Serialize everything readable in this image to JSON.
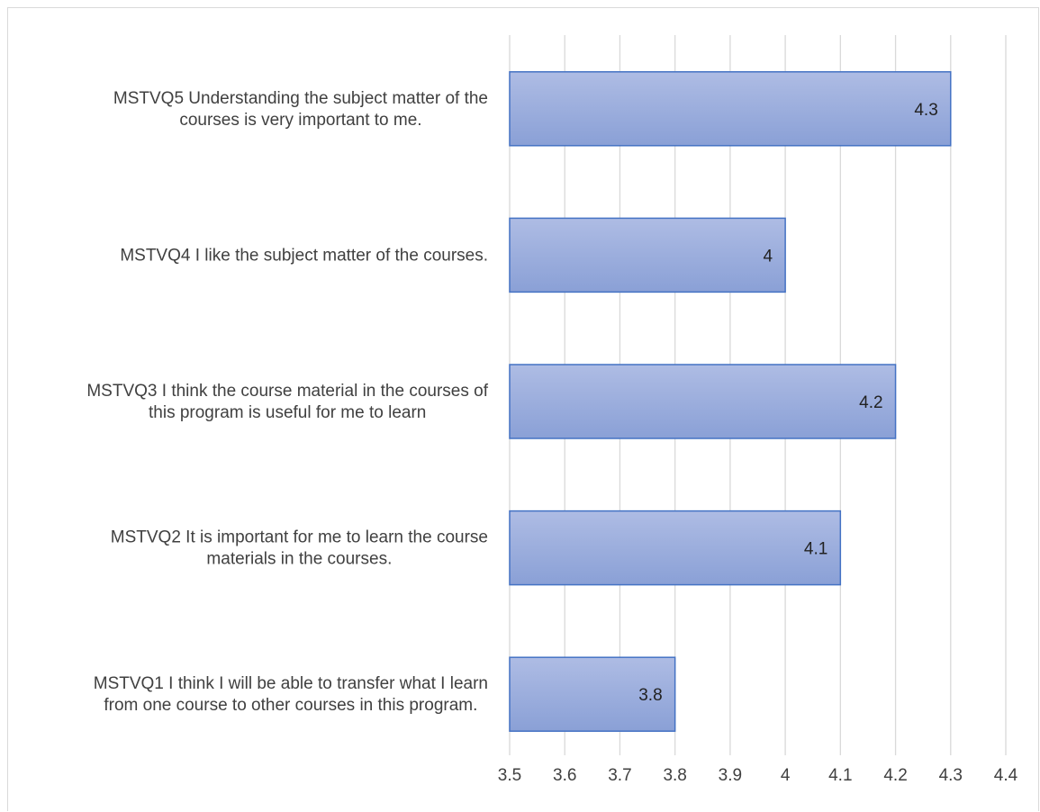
{
  "chart_data": {
    "type": "bar",
    "orientation": "horizontal",
    "title": "",
    "xlabel": "",
    "ylabel": "",
    "categories": [
      [
        "MSTVQ5 Understanding the subject matter of the",
        "courses is very important to me."
      ],
      [
        "MSTVQ4 I like the subject matter of the courses."
      ],
      [
        "MSTVQ3 I think the course material in the courses of",
        "this program is useful for me to learn"
      ],
      [
        "MSTVQ2 It is important for me to learn the course",
        "materials in the courses."
      ],
      [
        "MSTVQ1 I think I will be able to transfer what I learn",
        "from one course to other courses in this program."
      ]
    ],
    "values": [
      4.3,
      4,
      4.2,
      4.1,
      3.8
    ],
    "data_labels": [
      "4.3",
      "4",
      "4.2",
      "4.1",
      "3.8"
    ],
    "xlim": [
      3.5,
      4.4
    ],
    "ticks": [
      "3.5",
      "3.6",
      "3.7",
      "3.8",
      "3.9",
      "4",
      "4.1",
      "4.2",
      "4.3",
      "4.4"
    ],
    "grid": "vertical",
    "legend": "none",
    "colors": {
      "bar_top": "#aebce4",
      "bar_bottom": "#8aa0d6",
      "bar_border": "#4472c4",
      "grid": "#d9d9d9",
      "text": "#404040"
    }
  }
}
